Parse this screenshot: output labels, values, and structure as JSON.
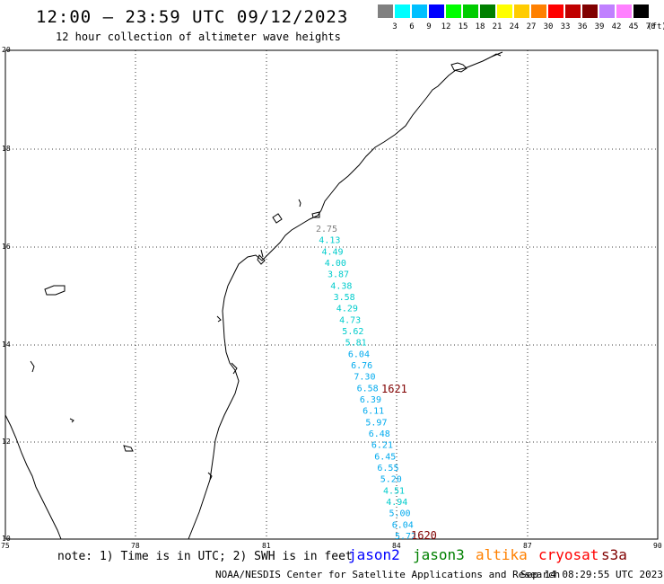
{
  "header": {
    "title": "12:00 – 23:59 UTC 09/12/2023",
    "subtitle": "12 hour collection of altimeter wave heights"
  },
  "scale": {
    "unit_label": "(ft)",
    "colors": [
      "#808080",
      "#00ffff",
      "#00c0ff",
      "#0000ff",
      "#00ff00",
      "#00cc00",
      "#008000",
      "#ffff00",
      "#ffcc00",
      "#ff8000",
      "#ff0000",
      "#c00000",
      "#800000",
      "#c080ff",
      "#ff80ff",
      "#000000"
    ],
    "labels": [
      "3",
      "6",
      "9",
      "12",
      "15",
      "18",
      "21",
      "24",
      "27",
      "30",
      "33",
      "36",
      "39",
      "42",
      "45",
      "70"
    ]
  },
  "axes": {
    "lat_labels": [
      "20",
      "18",
      "16",
      "14",
      "12",
      "10"
    ],
    "lon_labels": [
      "75",
      "78",
      "81",
      "84",
      "87",
      "90"
    ]
  },
  "track": {
    "values": [
      "2.75",
      "4.13",
      "4.49",
      "4.00",
      "3.87",
      "4.38",
      "3.58",
      "4.29",
      "4.73",
      "5.62",
      "5.81",
      "6.04",
      "6.76",
      "7.30",
      "6.58",
      "6.39",
      "6.11",
      "5.97",
      "6.48",
      "6.21",
      "6.45",
      "6.55",
      "5.20",
      "4.51",
      "4.94",
      "5.00",
      "6.04",
      "5.72"
    ],
    "colors": [
      "#808080",
      "#00cccc",
      "#00cccc",
      "#00cccc",
      "#00cccc",
      "#00cccc",
      "#00cccc",
      "#00cccc",
      "#00cccc",
      "#00cccc",
      "#00cccc",
      "#00aaee",
      "#00aaee",
      "#00aaee",
      "#00aaee",
      "#00aaee",
      "#00aaee",
      "#00aaee",
      "#00aaee",
      "#00aaee",
      "#00aaee",
      "#00aaee",
      "#00aaee",
      "#00cccc",
      "#00cccc",
      "#00aaee",
      "#00aaee",
      "#00aaee"
    ],
    "time_labels": [
      "1621",
      "1620"
    ],
    "time_label_color": "#800000"
  },
  "footer": {
    "note": "note: 1) Time is in UTC; 2) SWH is in feet",
    "legend": [
      {
        "label": "jason2",
        "color": "#0000ff"
      },
      {
        "label": "jason3",
        "color": "#008000"
      },
      {
        "label": "altika",
        "color": "#ff8000"
      },
      {
        "label": "cryosat",
        "color": "#ff0000"
      },
      {
        "label": "s3a",
        "color": "#800000"
      }
    ],
    "credit": "NOAA/NESDIS Center for Satellite Applications and Research",
    "timestamp": "Sep 14 08:29:55 UTC 2023"
  }
}
